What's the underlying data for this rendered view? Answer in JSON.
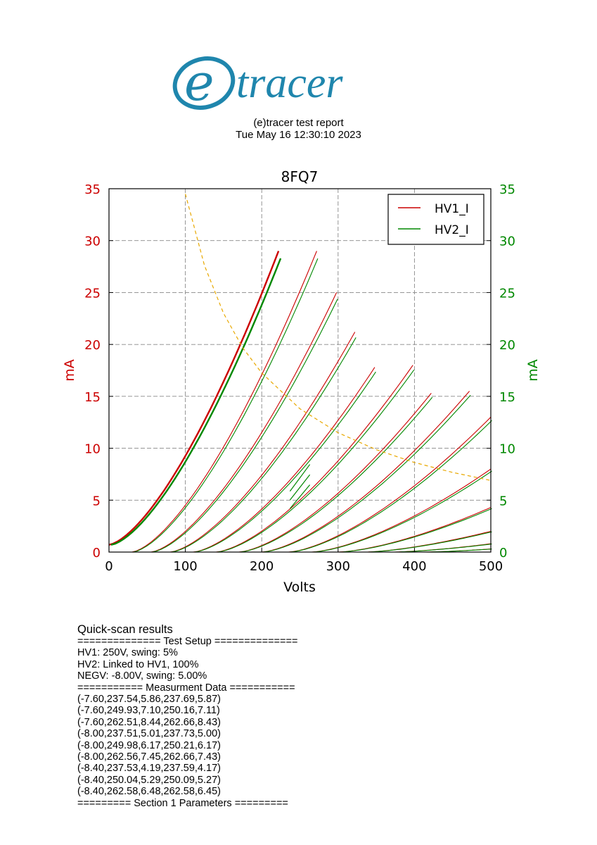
{
  "header": {
    "logo_text": "etracer",
    "logo_color": "#1f86ad",
    "report_title": "(e)tracer test report",
    "report_date": "Tue May 16 12:30:10 2023"
  },
  "chart_data": {
    "type": "line",
    "title": "8FQ7",
    "xlabel": "Volts",
    "ylabel_left": "mA",
    "ylabel_right": "mA",
    "xlim": [
      0,
      500
    ],
    "ylim": [
      0,
      35
    ],
    "x_ticks": [
      0,
      100,
      200,
      300,
      400,
      500
    ],
    "y_ticks": [
      0,
      5,
      10,
      15,
      20,
      25,
      30,
      35
    ],
    "grid": true,
    "legend_position": "top-right",
    "colors": {
      "HV1_I": "#cc0000",
      "HV2_I": "#008800",
      "load_line": "#e8a800",
      "left_axis": "#cc0000",
      "right_axis": "#008800"
    },
    "series": [
      {
        "name": "HV1_I",
        "color": "#cc0000"
      },
      {
        "name": "HV2_I",
        "color": "#008800"
      }
    ],
    "curve_family": [
      {
        "x0": 0,
        "x_end": 222,
        "y_end": 29.0,
        "y_start": 0.7
      },
      {
        "x0": 30,
        "x_end": 272,
        "y_end": 29.0
      },
      {
        "x0": 55,
        "x_end": 298,
        "y_end": 25.0
      },
      {
        "x0": 80,
        "x_end": 322,
        "y_end": 21.2
      },
      {
        "x0": 110,
        "x_end": 348,
        "y_end": 17.8
      },
      {
        "x0": 140,
        "x_end": 398,
        "y_end": 18.0
      },
      {
        "x0": 170,
        "x_end": 422,
        "y_end": 15.3
      },
      {
        "x0": 200,
        "x_end": 472,
        "y_end": 15.5
      },
      {
        "x0": 235,
        "x_end": 500,
        "y_end": 13.0
      },
      {
        "x0": 265,
        "x_end": 500,
        "y_end": 8.0
      },
      {
        "x0": 300,
        "x_end": 500,
        "y_end": 4.3
      },
      {
        "x0": 335,
        "x_end": 500,
        "y_end": 2.0
      },
      {
        "x0": 370,
        "x_end": 500,
        "y_end": 0.8
      },
      {
        "x0": 410,
        "x_end": 500,
        "y_end": 0.3
      }
    ],
    "scan_segments": [
      {
        "x": [
          237,
          263
        ],
        "y": [
          5.86,
          8.44
        ]
      },
      {
        "x": [
          237,
          263
        ],
        "y": [
          5.01,
          7.45
        ]
      },
      {
        "x": [
          237,
          263
        ],
        "y": [
          4.19,
          6.48
        ]
      }
    ],
    "load_line": {
      "x": [
        100,
        125,
        150,
        175,
        200,
        250,
        300,
        350,
        400,
        450,
        500
      ],
      "y": [
        34.5,
        27.6,
        23.0,
        19.7,
        17.25,
        13.8,
        11.5,
        9.86,
        8.63,
        7.67,
        6.9
      ]
    }
  },
  "results": {
    "heading": "Quick-scan results",
    "lines": [
      "============== Test Setup ==============",
      "HV1: 250V, swing: 5%",
      "HV2: Linked to HV1, 100%",
      "NEGV: -8.00V, swing: 5.00%",
      "=========== Measurment Data ===========",
      "(-7.60,237.54,5.86,237.69,5.87)",
      "(-7.60,249.93,7.10,250.16,7.11)",
      "(-7.60,262.51,8.44,262.66,8.43)",
      "(-8.00,237.51,5.01,237.73,5.00)",
      "(-8.00,249.98,6.17,250.21,6.17)",
      "(-8.00,262.56,7.45,262.66,7.43)",
      "(-8.40,237.53,4.19,237.59,4.17)",
      "(-8.40,250.04,5.29,250.09,5.27)",
      "(-8.40,262.58,6.48,262.58,6.45)",
      "========= Section 1 Parameters ========="
    ]
  }
}
